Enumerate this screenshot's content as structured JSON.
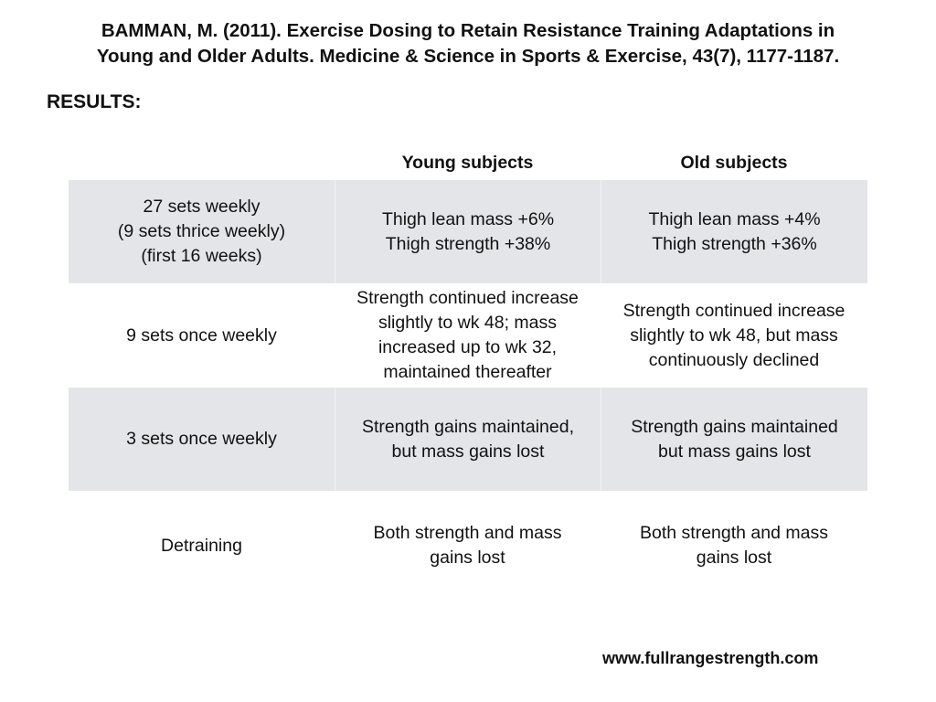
{
  "citation": {
    "line1": "BAMMAN, M. (2011). Exercise Dosing to Retain Resistance Training Adaptations in",
    "line2": "Young and Older Adults. Medicine & Science in Sports & Exercise, 43(7), 1177-1187."
  },
  "results_heading": "RESULTS:",
  "table": {
    "headers": [
      "",
      "Young subjects",
      "Old subjects"
    ],
    "rows": [
      {
        "condition": [
          "27 sets weekly",
          "(9 sets thrice weekly)",
          "(first 16 weeks)"
        ],
        "young": [
          "Thigh lean mass +6%",
          "Thigh strength +38%"
        ],
        "old": [
          "Thigh lean mass +4%",
          "Thigh strength +36%"
        ],
        "shaded": true
      },
      {
        "condition": [
          "9 sets once weekly"
        ],
        "young": [
          "Strength continued increase",
          "slightly to wk 48; mass",
          "increased up to wk 32,",
          "maintained thereafter"
        ],
        "old": [
          "Strength continued increase",
          "slightly to wk 48, but mass",
          "continuously declined"
        ],
        "shaded": false
      },
      {
        "condition": [
          "3 sets once weekly"
        ],
        "young": [
          "Strength gains maintained,",
          "but mass gains lost"
        ],
        "old": [
          "Strength gains maintained",
          "but mass gains lost"
        ],
        "shaded": true
      },
      {
        "condition": [
          "Detraining"
        ],
        "young": [
          "Both strength and mass",
          "gains lost"
        ],
        "old": [
          "Both strength and mass",
          "gains lost"
        ],
        "shaded": false
      }
    ]
  },
  "website": "www.fullrangestrength.com",
  "colors": {
    "shaded_row": "#e3e5e9",
    "text": "#111111",
    "background": "#ffffff"
  }
}
